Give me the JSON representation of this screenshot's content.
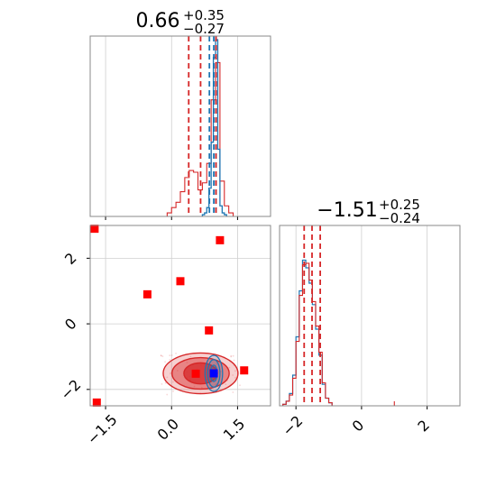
{
  "colors": {
    "red": "#d62728",
    "blue": "#1f77b4",
    "grid": "#cfcfcf",
    "marker_red": "#ff0000",
    "marker_blue": "#0000ff"
  },
  "chart_data": {
    "type": "corner",
    "parameters": [
      {
        "title_value": "0.66",
        "title_plus": "+0.35",
        "title_minus": "−0.27",
        "range": [
          -1.85,
          2.25
        ],
        "ticks": [
          -1.5,
          0.0,
          1.5
        ],
        "tick_labels": [
          "−1.5",
          "0.0",
          "1.5"
        ],
        "quantiles_red": [
          0.39,
          0.66,
          1.01
        ],
        "quantiles_blue": [
          0.86,
          0.96,
          1.01
        ]
      },
      {
        "title_value": "−1.51",
        "title_plus": "+0.25",
        "title_minus": "−0.24",
        "range": [
          -2.5,
          3.0
        ],
        "ticks": [
          -2,
          0,
          2
        ],
        "tick_labels": [
          "−2",
          "0",
          "2"
        ],
        "quantiles_red": [
          -1.75,
          -1.51,
          -1.26
        ],
        "quantiles_blue": [
          -1.75,
          -1.51,
          -1.26
        ]
      }
    ],
    "hist_1d_param0": {
      "bin_edges": [
        -0.1,
        0.0,
        0.1,
        0.2,
        0.3,
        0.4,
        0.5,
        0.6,
        0.7,
        0.8,
        0.9,
        1.0,
        1.1,
        1.2,
        1.3,
        1.4
      ],
      "red_counts": [
        0.02,
        0.05,
        0.08,
        0.14,
        0.22,
        0.26,
        0.25,
        0.15,
        0.19,
        0.3,
        0.66,
        0.87,
        0.2,
        0.06,
        0.02
      ],
      "blue_bin_edges": [
        0.7,
        0.75,
        0.8,
        0.85,
        0.9,
        0.95,
        1.0,
        1.05,
        1.1,
        1.15,
        1.2,
        1.25
      ],
      "blue_counts": [
        0.01,
        0.02,
        0.05,
        0.16,
        0.42,
        0.9,
        1.0,
        0.38,
        0.06,
        0.02,
        0.01
      ]
    },
    "hist_1d_param1": {
      "bin_edges": [
        -2.4,
        -2.3,
        -2.2,
        -2.1,
        -2.0,
        -1.9,
        -1.8,
        -1.7,
        -1.6,
        -1.5,
        -1.4,
        -1.3,
        -1.2,
        -1.1,
        -1.0,
        -0.9
      ],
      "red_counts": [
        0.01,
        0.03,
        0.07,
        0.18,
        0.42,
        0.72,
        0.92,
        0.93,
        0.82,
        0.68,
        0.52,
        0.35,
        0.15,
        0.05,
        0.02
      ],
      "blue_counts": [
        0.01,
        0.03,
        0.08,
        0.2,
        0.45,
        0.75,
        0.95,
        0.9,
        0.8,
        0.66,
        0.5,
        0.33,
        0.14,
        0.05,
        0.02
      ],
      "isolated_x": 1.0
    },
    "scatter_2d_red_points": [
      {
        "x": -1.75,
        "y": 2.9
      },
      {
        "x": 1.1,
        "y": 2.55
      },
      {
        "x": 0.2,
        "y": 1.3
      },
      {
        "x": -0.55,
        "y": 0.9
      },
      {
        "x": 0.85,
        "y": -0.2
      },
      {
        "x": 0.55,
        "y": -1.52
      },
      {
        "x": 1.65,
        "y": -1.42
      },
      {
        "x": -1.7,
        "y": -2.4
      }
    ],
    "scatter_2d_blue_point": {
      "x": 0.96,
      "y": -1.51
    },
    "contours_2d_red": [
      {
        "cx": 0.66,
        "cy": -1.51,
        "rx": 0.38,
        "ry": 0.32
      },
      {
        "cx": 0.66,
        "cy": -1.51,
        "rx": 0.65,
        "ry": 0.48
      },
      {
        "cx": 0.66,
        "cy": -1.51,
        "rx": 0.85,
        "ry": 0.62
      }
    ],
    "contours_2d_blue": [
      {
        "cx": 0.96,
        "cy": -1.51,
        "rx": 0.08,
        "ry": 0.25
      },
      {
        "cx": 0.96,
        "cy": -1.51,
        "rx": 0.14,
        "ry": 0.42
      },
      {
        "cx": 0.96,
        "cy": -1.51,
        "rx": 0.2,
        "ry": 0.55
      }
    ],
    "grid": true
  }
}
